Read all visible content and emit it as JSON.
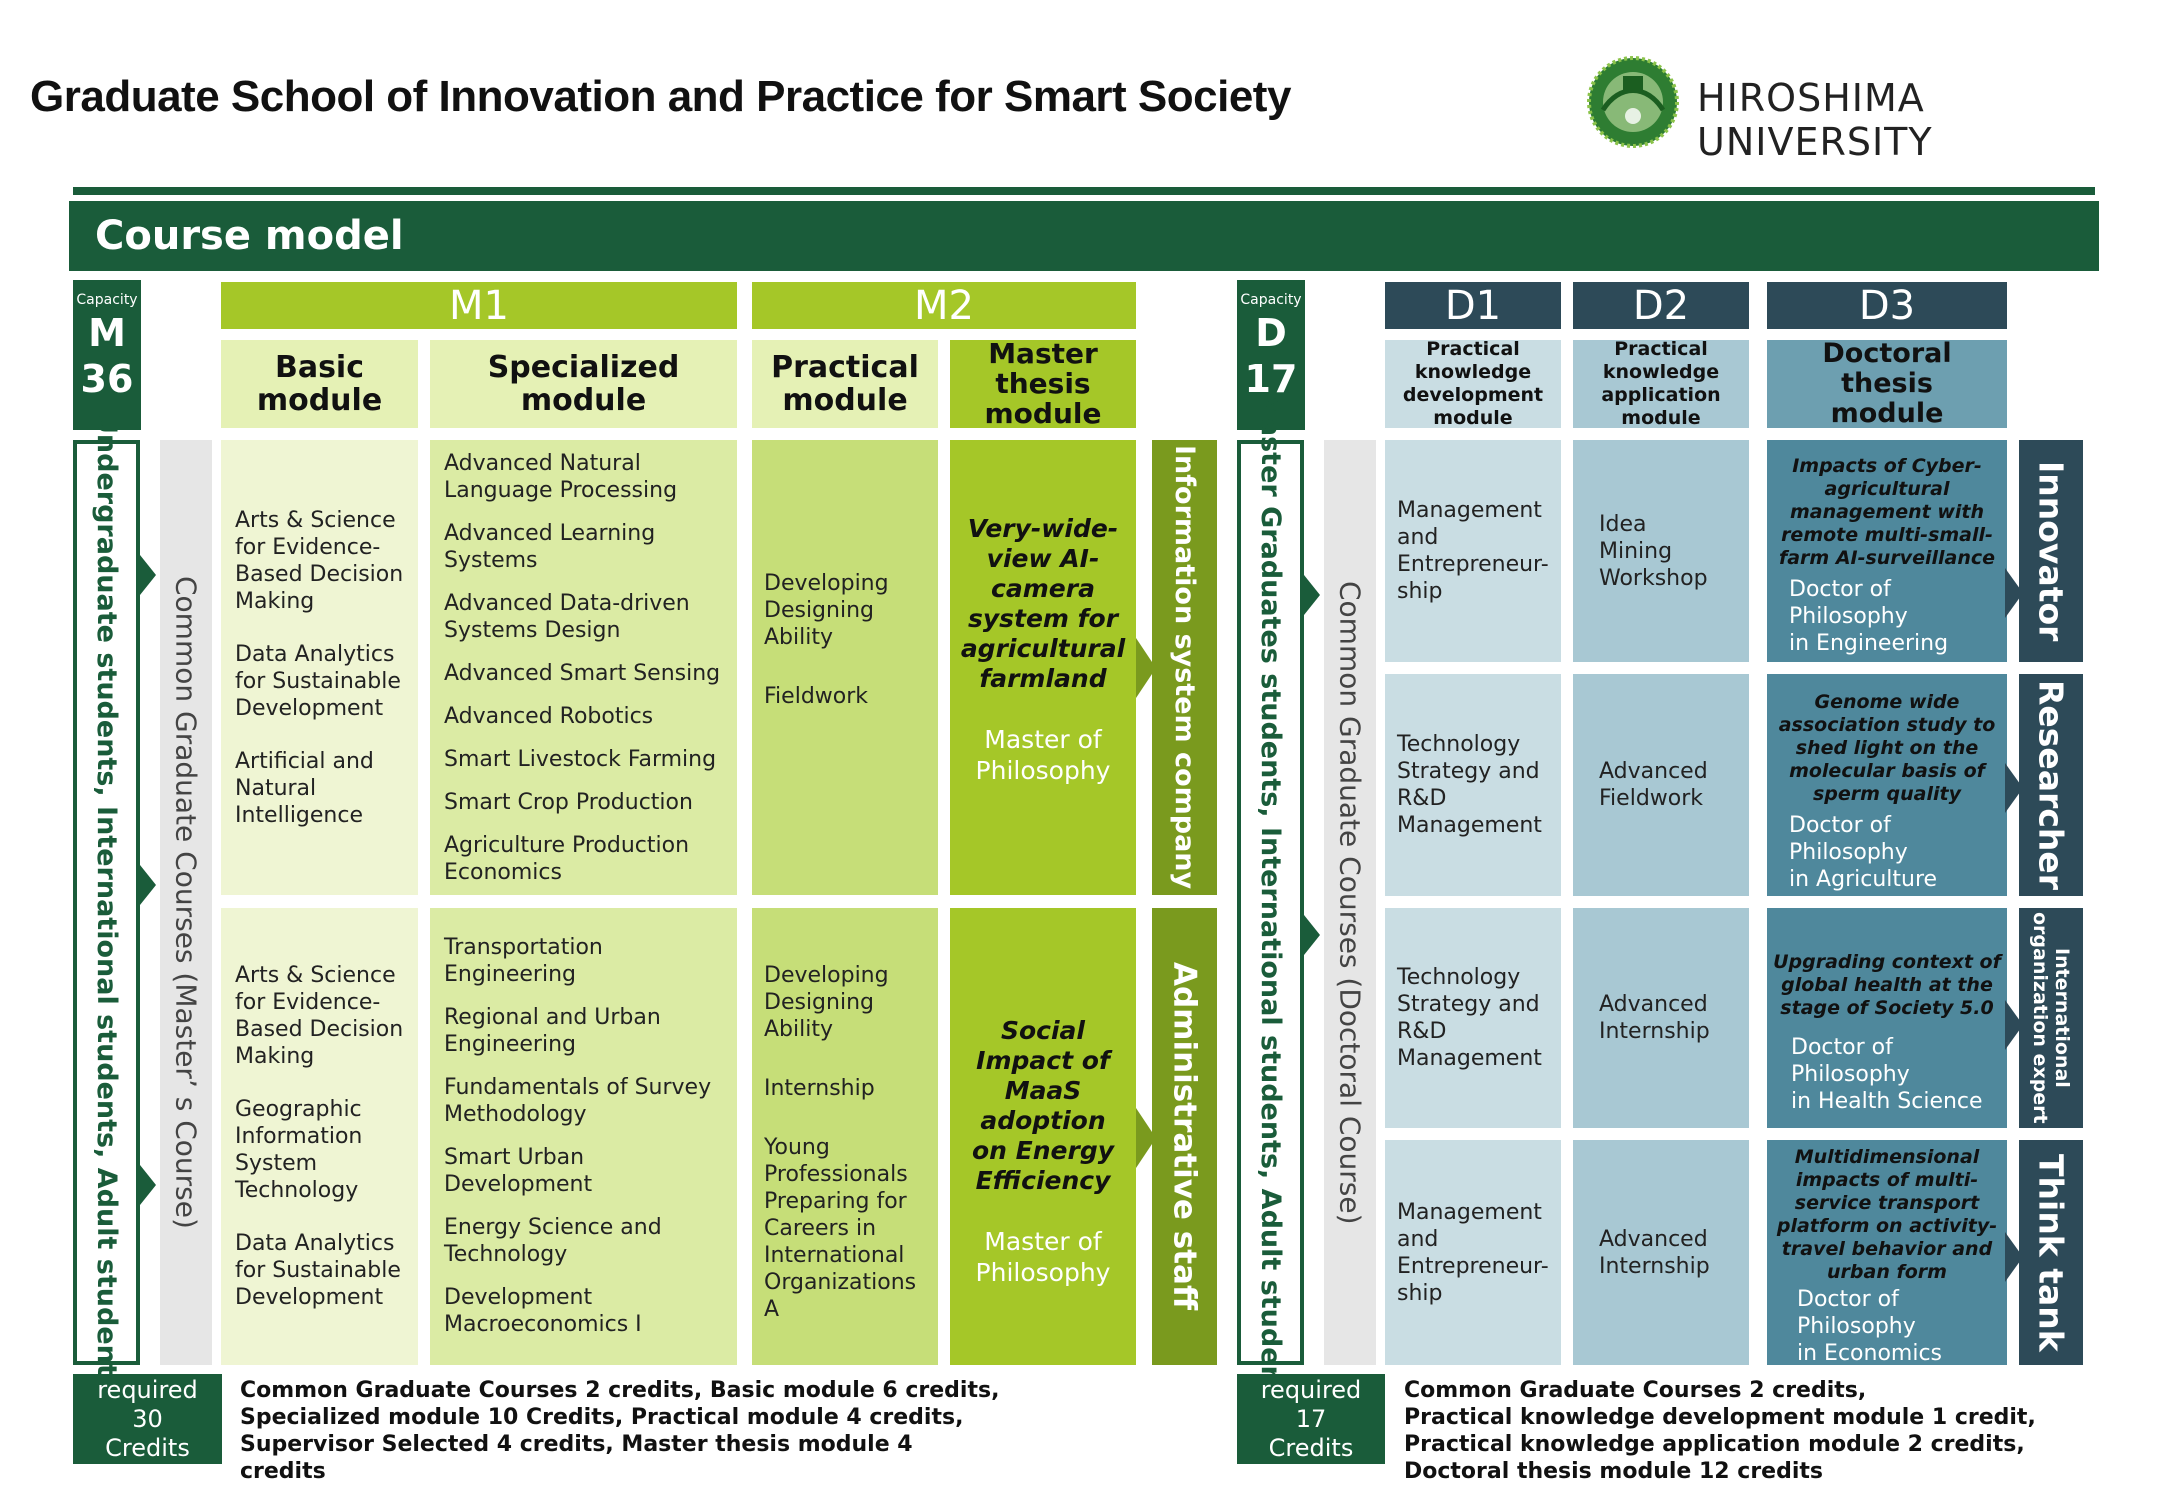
{
  "header": {
    "title": "Graduate School of Innovation and Practice for Smart Society",
    "university": "HIROSHIMA UNIVERSITY"
  },
  "banner": {
    "title": "Course model"
  },
  "colors": {
    "dark_green": "#1a5c3a",
    "lime": "#a5c728",
    "pale_lime": "#eff5d3",
    "olive": "#7a9a1e",
    "dark_slate": "#2d4a58",
    "light_blue": "#c9dde3",
    "steel_blue": "#4f889c"
  },
  "master": {
    "capacity_label": "Capacity",
    "program_letter": "M",
    "program_number": "36",
    "students_label": "Undergraduate students, International students, Adult students",
    "common_label": "Common Graduate Courses (Master’ s Course)",
    "years": [
      "M1",
      "M2"
    ],
    "modules": [
      "Basic\nmodule",
      "Specialized\nmodule",
      "Practical\nmodule",
      "Master\nthesis\nmodule"
    ],
    "tracks": [
      {
        "basic": [
          "Arts & Science\nfor Evidence-\nBased Decision\nMaking",
          "Data Analytics\nfor Sustainable\nDevelopment",
          "Artificial and\nNatural\nIntelligence"
        ],
        "specialized": [
          "Advanced Natural\nLanguage Processing",
          "Advanced Learning\nSystems",
          "Advanced Data-driven\nSystems Design",
          "Advanced Smart Sensing",
          "Advanced Robotics",
          "Smart Livestock Farming",
          "Smart Crop Production",
          "Agriculture Production\nEconomics"
        ],
        "practical": [
          "Developing\nDesigning\nAbility",
          "Fieldwork"
        ],
        "thesis_title": "Very-wide-\nview AI-\ncamera\nsystem for\nagricultural\nfarmland",
        "degree": "Master of\nPhilosophy",
        "career": "Information system company"
      },
      {
        "basic": [
          "Arts & Science\nfor Evidence-\nBased Decision\nMaking",
          "Geographic\nInformation\nSystem\nTechnology",
          "Data Analytics\nfor Sustainable\nDevelopment"
        ],
        "specialized": [
          "Transportation\nEngineering",
          "Regional and Urban\nEngineering",
          "Fundamentals of Survey\nMethodology",
          "Smart Urban\nDevelopment",
          "Energy Science and\nTechnology",
          "Development\nMacroeconomics Ⅰ"
        ],
        "practical": [
          "Developing\nDesigning\nAbility",
          "Internship",
          "Young\nProfessionals\nPreparing for\nCareers in\nInternational\nOrganizations\nA"
        ],
        "thesis_title": "Social\nImpact of\nMaaS\nadoption\non Energy\nEfficiency",
        "degree": "Master of\nPhilosophy",
        "career": "Administrative staff"
      }
    ],
    "required_label": "required\n30\nCredits",
    "credits_text": "Common Graduate Courses 2 credits, Basic module 6 credits,\nSpecialized module 10 Credits, Practical module 4 credits,\nSupervisor Selected 4 credits, Master thesis module 4 credits"
  },
  "doctor": {
    "capacity_label": "Capacity",
    "program_letter": "D",
    "program_number": "17",
    "students_label": "Master Graduates students, International students, Adult students",
    "common_label": "Common Graduate Courses (Doctoral Course)",
    "years": [
      "D1",
      "D2",
      "D3"
    ],
    "modules": [
      "Practical\nknowledge\ndevelopment\nmodule",
      "Practical\nknowledge\napplication\nmodule",
      "Doctoral\nthesis\nmodule"
    ],
    "tracks": [
      {
        "d1": "Management\nand\nEntrepreneur-\nship",
        "d2": "Idea Mining\nWorkshop",
        "thesis": "Impacts of Cyber-\nagricultural\nmanagement with\nremote multi-small-\nfarm AI-surveillance",
        "degree": "Doctor of\nPhilosophy\nin Engineering",
        "career": "Innovator"
      },
      {
        "d1": "Technology\nStrategy and\nR&D\nManagement",
        "d2": "Advanced\nFieldwork",
        "thesis": "Genome wide\nassociation study to\nshed light on the\nmolecular basis of\nsperm quality",
        "degree": "Doctor of\nPhilosophy\nin Agriculture",
        "career": "Researcher"
      },
      {
        "d1": "Technology\nStrategy and\nR&D\nManagement",
        "d2": "Advanced\nInternship",
        "thesis": "Upgrading context of\nglobal health at the\nstage of Society 5.0",
        "degree": "Doctor of\nPhilosophy\nin Health Science",
        "career": "International\norganization expert"
      },
      {
        "d1": "Management\nand\nEntrepreneur-\nship",
        "d2": "Advanced\nInternship",
        "thesis": "Multidimensional\nimpacts of multi-\nservice transport\nplatform on activity-\ntravel behavior and\nurban form",
        "degree": "Doctor of\nPhilosophy\nin Economics",
        "career": "Think tank"
      }
    ],
    "required_label": "required\n17\nCredits",
    "credits_text": "Common Graduate Courses 2 credits,\nPractical knowledge development module 1 credit,\nPractical knowledge application module 2 credits,\nDoctoral thesis module 12 credits"
  }
}
